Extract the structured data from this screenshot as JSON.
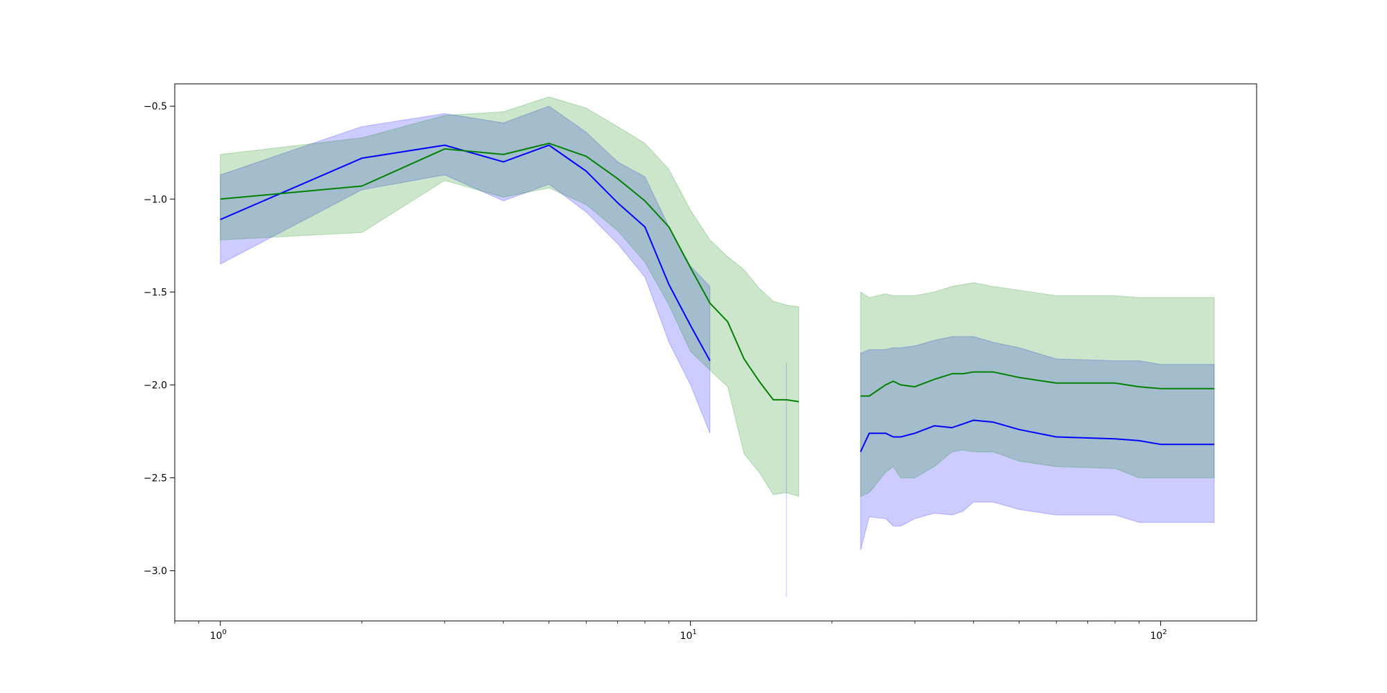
{
  "chart_data": {
    "type": "line",
    "xscale": "log",
    "xlim": [
      0.8,
      160
    ],
    "ylim": [
      -3.27,
      -0.38
    ],
    "grid": false,
    "legend": "none",
    "yticks": [
      -0.5,
      -1.0,
      -1.5,
      -2.0,
      -2.5,
      -3.0
    ],
    "ytick_labels": [
      "−0.5",
      "−1.0",
      "−1.5",
      "−2.0",
      "−2.5",
      "−3.0"
    ],
    "xticks": [
      {
        "value": 1,
        "base": "10",
        "exp": "0"
      },
      {
        "value": 10,
        "base": "10",
        "exp": "1"
      },
      {
        "value": 100,
        "base": "10",
        "exp": "2"
      }
    ],
    "series": [
      {
        "color": "#0000ff",
        "band_color": "#0000ff",
        "band_opacity": 0.2,
        "segments": [
          {
            "x": [
              1,
              2,
              3,
              4,
              5,
              6,
              7,
              8,
              9,
              10,
              11
            ],
            "y": [
              -1.11,
              -0.78,
              -0.71,
              -0.8,
              -0.71,
              -0.85,
              -1.02,
              -1.15,
              -1.46,
              -1.68,
              -1.87
            ],
            "lower": [
              -1.35,
              -0.95,
              -0.87,
              -1.01,
              -0.92,
              -1.07,
              -1.24,
              -1.42,
              -1.77,
              -2.0,
              -2.26
            ],
            "upper": [
              -0.87,
              -0.61,
              -0.54,
              -0.59,
              -0.5,
              -0.64,
              -0.8,
              -0.88,
              -1.15,
              -1.36,
              -1.47
            ]
          },
          {
            "x": [
              16,
              16
            ],
            "y": [
              -1.88,
              -3.14
            ],
            "lower": [
              -3.14,
              -3.14
            ],
            "upper": [
              -1.88,
              -1.88
            ],
            "band_only": true
          },
          {
            "x": [
              23,
              24,
              26,
              27,
              28,
              30,
              33,
              36,
              38,
              40,
              44,
              50,
              60,
              80,
              90,
              100,
              130
            ],
            "y": [
              -2.36,
              -2.26,
              -2.26,
              -2.28,
              -2.28,
              -2.26,
              -2.22,
              -2.23,
              -2.21,
              -2.19,
              -2.2,
              -2.24,
              -2.28,
              -2.29,
              -2.3,
              -2.32,
              -2.32
            ],
            "lower": [
              -2.89,
              -2.71,
              -2.72,
              -2.76,
              -2.76,
              -2.72,
              -2.69,
              -2.7,
              -2.68,
              -2.63,
              -2.63,
              -2.67,
              -2.7,
              -2.7,
              -2.74,
              -2.74,
              -2.74
            ],
            "upper": [
              -1.83,
              -1.81,
              -1.81,
              -1.8,
              -1.8,
              -1.79,
              -1.76,
              -1.74,
              -1.74,
              -1.74,
              -1.77,
              -1.8,
              -1.86,
              -1.87,
              -1.87,
              -1.89,
              -1.89
            ]
          }
        ]
      },
      {
        "color": "#008000",
        "band_color": "#008000",
        "band_opacity": 0.2,
        "segments": [
          {
            "x": [
              1,
              2,
              3,
              4,
              5,
              6,
              7,
              8,
              9,
              10,
              11,
              12,
              13,
              14,
              15,
              16,
              17
            ],
            "y": [
              -1.0,
              -0.93,
              -0.73,
              -0.76,
              -0.7,
              -0.77,
              -0.89,
              -1.01,
              -1.15,
              -1.37,
              -1.56,
              -1.66,
              -1.86,
              -1.98,
              -2.08,
              -2.08,
              -2.09
            ],
            "lower": [
              -1.22,
              -1.18,
              -0.9,
              -0.99,
              -0.94,
              -1.03,
              -1.17,
              -1.34,
              -1.57,
              -1.82,
              -1.92,
              -2.01,
              -2.37,
              -2.47,
              -2.59,
              -2.58,
              -2.6
            ],
            "upper": [
              -0.76,
              -0.67,
              -0.55,
              -0.53,
              -0.45,
              -0.51,
              -0.61,
              -0.7,
              -0.84,
              -1.06,
              -1.22,
              -1.31,
              -1.38,
              -1.48,
              -1.55,
              -1.57,
              -1.58
            ]
          },
          {
            "x": [
              23,
              24,
              26,
              27,
              28,
              30,
              33,
              36,
              38,
              40,
              44,
              50,
              60,
              80,
              90,
              100,
              130
            ],
            "y": [
              -2.06,
              -2.06,
              -2.0,
              -1.98,
              -2.0,
              -2.01,
              -1.97,
              -1.94,
              -1.94,
              -1.93,
              -1.93,
              -1.96,
              -1.99,
              -1.99,
              -2.01,
              -2.02,
              -2.02
            ],
            "lower": [
              -2.6,
              -2.58,
              -2.47,
              -2.44,
              -2.5,
              -2.5,
              -2.44,
              -2.36,
              -2.35,
              -2.36,
              -2.36,
              -2.41,
              -2.44,
              -2.45,
              -2.5,
              -2.5,
              -2.5
            ],
            "upper": [
              -1.5,
              -1.53,
              -1.51,
              -1.52,
              -1.52,
              -1.52,
              -1.5,
              -1.47,
              -1.46,
              -1.45,
              -1.47,
              -1.49,
              -1.52,
              -1.52,
              -1.53,
              -1.53,
              -1.53
            ]
          }
        ]
      }
    ]
  }
}
